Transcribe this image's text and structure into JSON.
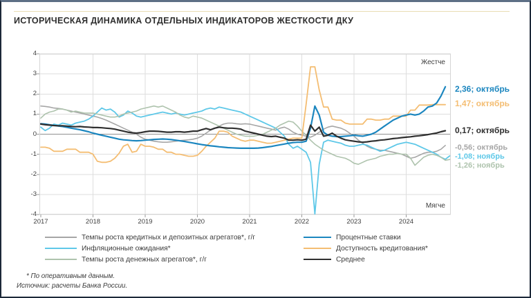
{
  "page": {
    "title": "ИСТОРИЧЕСКАЯ ДИНАМИКА ОТДЕЛЬНЫХ ИНДИКАТОРОВ ЖЕСТКОСТИ ДКУ",
    "footnotes": [
      "* По оперативным данным.",
      "Источник: расчеты Банка России."
    ]
  },
  "chart_data": {
    "type": "line",
    "title": "ИСТОРИЧЕСКАЯ ДИНАМИКА ОТДЕЛЬНЫХ ИНДИКАТОРОВ ЖЕСТКОСТИ ДКУ",
    "x_axis": {
      "unit": "month",
      "start": "2017-01",
      "tick_labels": [
        "2017",
        "2018",
        "2019",
        "2020",
        "2021",
        "2022",
        "2023",
        "2024"
      ]
    },
    "y_axis": {
      "ticks": [
        4,
        3,
        2,
        1,
        0,
        -1,
        -2,
        -3,
        -4
      ],
      "ylim": [
        -4,
        4
      ]
    },
    "area_labels": {
      "top": "Жестче",
      "bottom": "Мягче"
    },
    "grid": true,
    "legend_position": "bottom",
    "colors": {
      "grid": "#dedede",
      "zero_line": "#8f8f8f",
      "plot_border": "#d5d5d5"
    },
    "series": [
      {
        "id": "credit_deposit_growth",
        "name": "Темпы роста кредитных и депозитных агрегатов*, г/г",
        "color": "#a6a6a6",
        "width": 1.6,
        "end_label": "-0,56; октябрь",
        "end_month": "2024-10",
        "values": [
          1.4,
          1.38,
          1.35,
          1.3,
          1.28,
          1.25,
          1.2,
          1.15,
          1.1,
          1.05,
          1.0,
          0.95,
          0.9,
          0.85,
          0.78,
          0.7,
          0.6,
          0.5,
          0.4,
          0.3,
          0.2,
          0.1,
          0.0,
          -0.15,
          -0.25,
          -0.3,
          -0.35,
          -0.38,
          -0.4,
          -0.4,
          -0.38,
          -0.35,
          -0.32,
          -0.3,
          -0.28,
          -0.25,
          -0.2,
          -0.1,
          0.05,
          0.2,
          0.3,
          0.4,
          0.5,
          0.55,
          0.55,
          0.52,
          0.5,
          0.52,
          0.5,
          0.45,
          0.4,
          0.35,
          0.3,
          0.25,
          0.2,
          0.3,
          0.35,
          0.25,
          0.1,
          0.0,
          -0.05,
          -0.1,
          -0.15,
          -0.05,
          0.1,
          0.25,
          0.35,
          0.4,
          0.35,
          0.3,
          0.2,
          0.05,
          -0.1,
          -0.3,
          -0.45,
          -0.6,
          -0.7,
          -0.75,
          -0.8,
          -0.8,
          -0.85,
          -0.9,
          -0.95,
          -1.0,
          -1.1,
          -1.2,
          -1.15,
          -1.05,
          -0.95,
          -0.9,
          -0.9,
          -0.85,
          -0.75,
          -0.56
        ]
      },
      {
        "id": "inflation_expectations",
        "name": "Инфляционные ожидания*",
        "color": "#5ec8e8",
        "width": 1.8,
        "end_label": "-1,08; ноябрь",
        "end_month": "2024-11",
        "values": [
          0.35,
          0.18,
          0.3,
          0.5,
          0.45,
          0.55,
          0.5,
          0.45,
          0.55,
          0.6,
          0.65,
          0.75,
          0.9,
          1.1,
          1.3,
          1.2,
          1.25,
          1.1,
          0.85,
          0.95,
          1.15,
          1.05,
          0.9,
          0.85,
          0.9,
          0.95,
          1.0,
          1.05,
          1.1,
          1.05,
          1.0,
          1.05,
          1.0,
          0.95,
          1.0,
          1.05,
          1.1,
          1.15,
          1.25,
          1.3,
          1.25,
          1.35,
          1.3,
          1.25,
          1.2,
          1.15,
          1.1,
          1.0,
          0.9,
          0.8,
          0.7,
          0.6,
          0.5,
          0.4,
          0.3,
          0.1,
          -0.1,
          -0.5,
          -0.7,
          -0.6,
          -0.75,
          -0.9,
          -1.4,
          -4.0,
          -1.5,
          -0.4,
          -0.3,
          -0.35,
          -0.4,
          -0.45,
          -0.55,
          -0.6,
          -0.6,
          -0.55,
          -0.5,
          -0.55,
          -0.65,
          -0.75,
          -0.85,
          -0.8,
          -0.7,
          -0.6,
          -0.5,
          -0.45,
          -0.4,
          -0.45,
          -0.5,
          -0.6,
          -0.7,
          -0.8,
          -0.9,
          -1.0,
          -1.15,
          -1.25,
          -1.08
        ]
      },
      {
        "id": "money_agg_growth",
        "name": "Темпы роста денежных агрегатов*, г/г",
        "color": "#aec3ad",
        "width": 1.6,
        "end_label": "-1,26; ноябрь",
        "end_month": "2024-11",
        "values": [
          0.8,
          1.0,
          1.1,
          1.15,
          1.25,
          1.25,
          1.2,
          1.1,
          1.15,
          1.1,
          1.05,
          1.05,
          1.05,
          1.0,
          0.95,
          0.9,
          0.85,
          0.85,
          0.9,
          1.0,
          1.05,
          1.1,
          1.15,
          1.25,
          1.3,
          1.35,
          1.4,
          1.35,
          1.4,
          1.3,
          1.2,
          1.1,
          0.95,
          0.85,
          0.8,
          0.9,
          0.85,
          0.8,
          0.7,
          0.6,
          0.5,
          0.4,
          0.3,
          0.2,
          0.1,
          0.0,
          -0.05,
          -0.1,
          -0.1,
          -0.1,
          -0.05,
          0.0,
          0.1,
          0.2,
          0.3,
          0.45,
          0.55,
          0.65,
          0.6,
          0.4,
          0.15,
          -0.05,
          -0.3,
          -0.5,
          -0.65,
          -0.8,
          -0.9,
          -1.0,
          -1.1,
          -1.15,
          -1.2,
          -1.3,
          -1.45,
          -1.5,
          -1.4,
          -1.3,
          -1.25,
          -1.2,
          -1.1,
          -1.05,
          -1.0,
          -1.0,
          -0.95,
          -1.0,
          -1.0,
          -1.2,
          -1.55,
          -1.35,
          -1.15,
          -1.05,
          -1.0,
          -1.05,
          -1.15,
          -1.3,
          -1.26
        ]
      },
      {
        "id": "credit_availability",
        "name": "Доступность кредитования*",
        "color": "#f4bd72",
        "width": 1.8,
        "end_label": "1,47; октябрь",
        "end_month": "2024-10",
        "values": [
          -0.65,
          -0.65,
          -0.7,
          -0.85,
          -0.85,
          -0.85,
          -0.75,
          -0.75,
          -0.75,
          -0.9,
          -0.9,
          -0.9,
          -1.0,
          -1.35,
          -1.4,
          -1.4,
          -1.35,
          -1.2,
          -0.95,
          -0.6,
          -0.5,
          -0.9,
          -0.85,
          -0.5,
          -0.6,
          -0.6,
          -0.65,
          -0.75,
          -0.75,
          -0.9,
          -0.9,
          -1.0,
          -1.0,
          -1.05,
          -1.1,
          -1.1,
          -1.05,
          -0.85,
          -0.6,
          -0.4,
          -0.2,
          0.15,
          0.15,
          0.1,
          -0.1,
          -0.2,
          -0.3,
          -0.35,
          -0.3,
          -0.3,
          -0.35,
          -0.4,
          -0.45,
          -0.45,
          -0.4,
          -0.35,
          -0.3,
          -0.25,
          -0.2,
          -0.2,
          -0.2,
          1.5,
          3.35,
          3.35,
          2.2,
          1.35,
          1.35,
          0.75,
          0.7,
          0.7,
          0.55,
          0.5,
          0.5,
          0.5,
          0.5,
          0.75,
          0.75,
          0.7,
          0.7,
          0.75,
          0.75,
          0.9,
          0.9,
          0.9,
          0.9,
          1.2,
          1.2,
          1.45,
          1.45,
          1.45,
          1.47,
          1.47,
          1.47,
          1.47
        ]
      },
      {
        "id": "interest_rates",
        "name": "Процентные ставки",
        "color": "#1b86bf",
        "width": 2.2,
        "end_label": "2,36; октябрь",
        "end_month": "2024-10",
        "values": [
          0.52,
          0.5,
          0.47,
          0.44,
          0.41,
          0.38,
          0.34,
          0.3,
          0.26,
          0.22,
          0.17,
          0.12,
          0.05,
          0.0,
          -0.05,
          -0.1,
          -0.15,
          -0.2,
          -0.25,
          -0.28,
          -0.3,
          -0.32,
          -0.33,
          -0.32,
          -0.3,
          -0.28,
          -0.26,
          -0.25,
          -0.24,
          -0.25,
          -0.27,
          -0.3,
          -0.33,
          -0.36,
          -0.4,
          -0.44,
          -0.48,
          -0.52,
          -0.55,
          -0.58,
          -0.6,
          -0.63,
          -0.65,
          -0.67,
          -0.68,
          -0.69,
          -0.7,
          -0.7,
          -0.7,
          -0.7,
          -0.69,
          -0.67,
          -0.64,
          -0.61,
          -0.57,
          -0.53,
          -0.49,
          -0.45,
          -0.42,
          -0.4,
          -0.4,
          -0.35,
          0.3,
          1.4,
          0.95,
          0.1,
          -0.05,
          -0.1,
          -0.12,
          -0.12,
          -0.1,
          -0.08,
          -0.05,
          -0.08,
          -0.1,
          -0.05,
          0.0,
          0.1,
          0.25,
          0.4,
          0.55,
          0.7,
          0.8,
          0.9,
          0.95,
          1.0,
          0.95,
          1.0,
          1.15,
          1.35,
          1.4,
          1.55,
          1.9,
          2.36
        ]
      },
      {
        "id": "average",
        "name": "Среднее",
        "color": "#2f2f2f",
        "width": 2.2,
        "end_label": "0,17; октябрь",
        "end_month": "2024-10",
        "values": [
          0.5,
          0.47,
          0.45,
          0.43,
          0.42,
          0.42,
          0.4,
          0.38,
          0.37,
          0.38,
          0.36,
          0.35,
          0.33,
          0.33,
          0.32,
          0.3,
          0.28,
          0.25,
          0.2,
          0.15,
          0.1,
          0.07,
          0.05,
          0.08,
          0.12,
          0.15,
          0.15,
          0.14,
          0.12,
          0.1,
          0.1,
          0.12,
          0.12,
          0.1,
          0.12,
          0.15,
          0.15,
          0.22,
          0.28,
          0.22,
          0.3,
          0.35,
          0.32,
          0.3,
          0.3,
          0.28,
          0.25,
          0.15,
          0.1,
          0.05,
          0.0,
          -0.05,
          -0.1,
          -0.12,
          -0.1,
          -0.15,
          -0.2,
          -0.3,
          -0.3,
          -0.28,
          -0.3,
          -0.25,
          0.45,
          0.15,
          0.35,
          -0.1,
          -0.05,
          0.05,
          -0.1,
          -0.2,
          -0.28,
          -0.32,
          -0.35,
          -0.38,
          -0.4,
          -0.38,
          -0.35,
          -0.33,
          -0.3,
          -0.28,
          -0.25,
          -0.22,
          -0.2,
          -0.17,
          -0.15,
          -0.13,
          -0.1,
          -0.08,
          -0.05,
          -0.02,
          0.02,
          0.06,
          0.12,
          0.17
        ]
      }
    ]
  }
}
